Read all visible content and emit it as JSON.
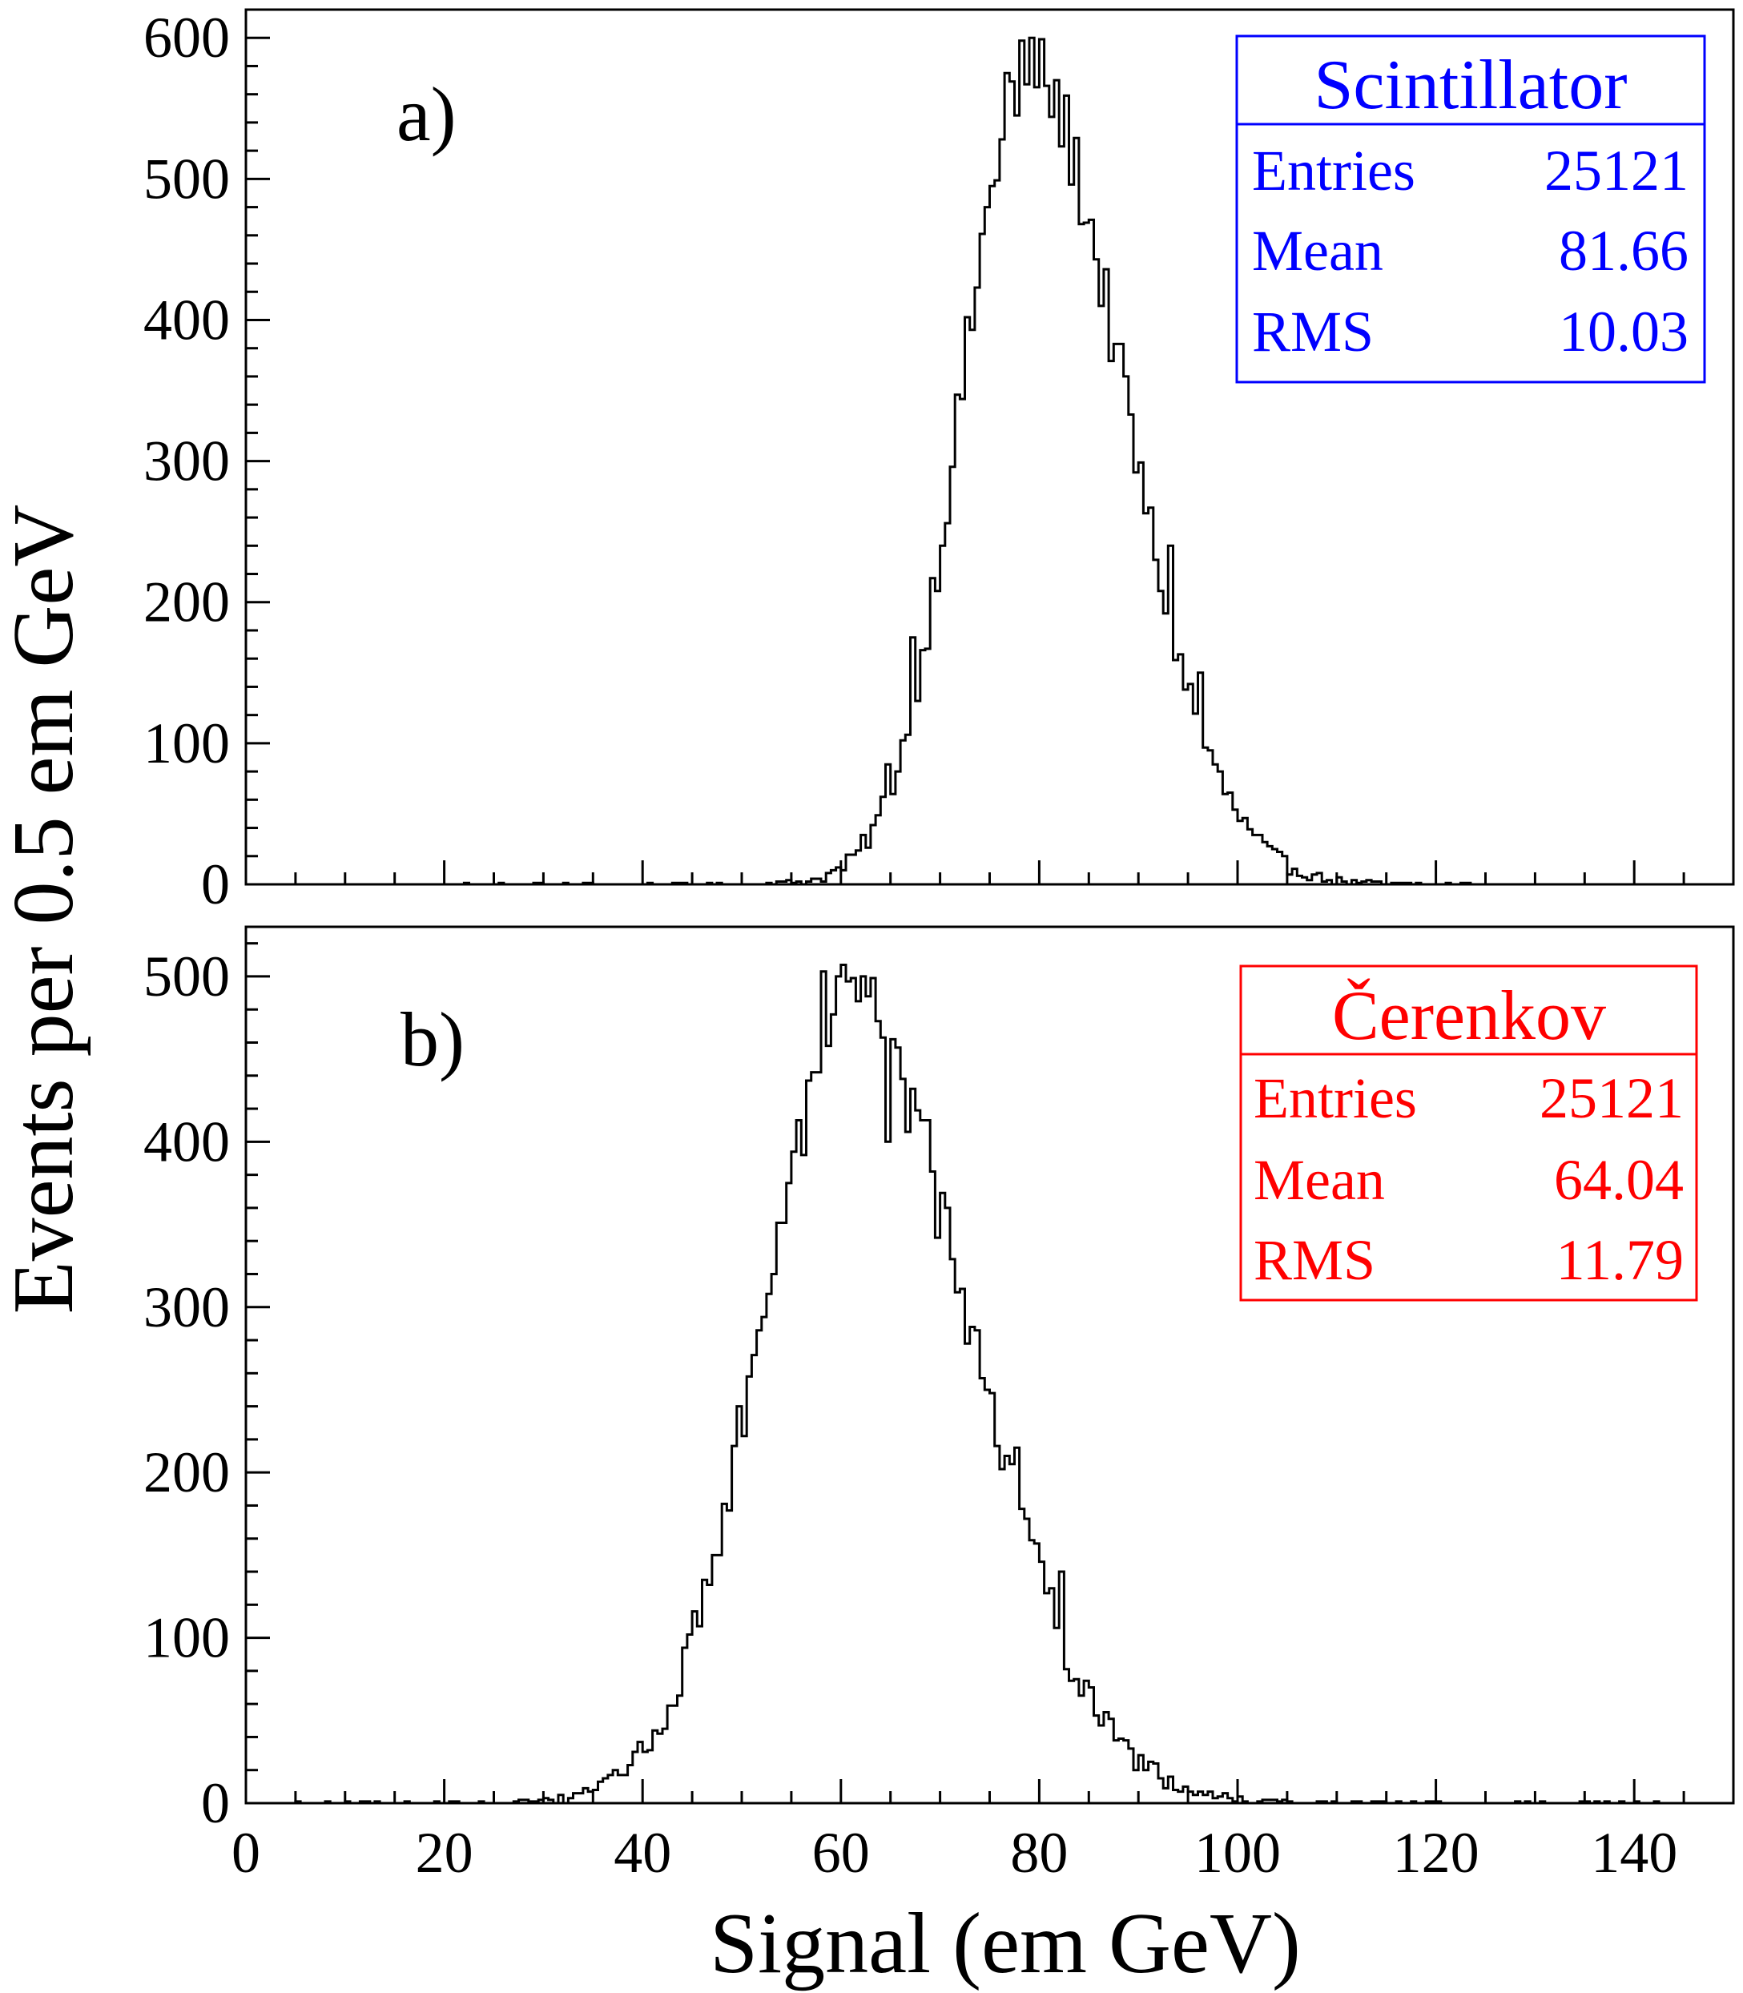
{
  "ylabel": "Events per 0.5 em GeV",
  "xlabel": "Signal (em GeV)",
  "x_ticks": [
    "0",
    "20",
    "40",
    "60",
    "80",
    "100",
    "120",
    "140"
  ],
  "chart_data": [
    {
      "type": "bar",
      "histogram": "step",
      "panel_label": "a)",
      "color": "#0000ff",
      "xlim": [
        0,
        150
      ],
      "ylim": [
        0,
        620
      ],
      "bin_width": 0.5,
      "y_ticks": [
        "0",
        "100",
        "200",
        "300",
        "400",
        "500",
        "600"
      ],
      "xlabel": "Signal (em GeV)",
      "ylabel": "Events per 0.5 em GeV",
      "stats": {
        "title": "Scintillator",
        "rows": [
          {
            "label": "Entries",
            "value": "25121"
          },
          {
            "label": "Mean",
            "value": "81.66"
          },
          {
            "label": "RMS",
            "value": "10.03"
          }
        ]
      },
      "distribution": {
        "shape": "gaussian",
        "peak_x": 79,
        "peak_y": 575,
        "sigma_left": 6.8,
        "sigma_right": 9.5,
        "x_min": 20,
        "x_max": 125,
        "bin_width": 0.5
      },
      "features": [
        {
          "x": 78.0,
          "y": 598
        },
        {
          "x": 79.5,
          "y": 565
        },
        {
          "x": 77.5,
          "y": 545
        },
        {
          "x": 76.5,
          "y": 575
        },
        {
          "x": 88.5,
          "y": 360
        },
        {
          "x": 93.0,
          "y": 240
        },
        {
          "x": 96.0,
          "y": 150
        },
        {
          "x": 64.5,
          "y": 85
        },
        {
          "x": 67.0,
          "y": 175
        }
      ]
    },
    {
      "type": "bar",
      "histogram": "step",
      "panel_label": "b)",
      "color": "#ff0000",
      "xlim": [
        0,
        150
      ],
      "ylim": [
        0,
        530
      ],
      "bin_width": 0.5,
      "y_ticks": [
        "0",
        "100",
        "200",
        "300",
        "400",
        "500"
      ],
      "xlabel": "Signal (em GeV)",
      "ylabel": "Events per 0.5 em GeV",
      "stats": {
        "title": "Čerenkov",
        "rows": [
          {
            "label": "Entries",
            "value": "25121"
          },
          {
            "label": "Mean",
            "value": "64.04"
          },
          {
            "label": "RMS",
            "value": "11.79"
          }
        ]
      },
      "distribution": {
        "shape": "gaussian",
        "peak_x": 61,
        "peak_y": 480,
        "sigma_left": 9.0,
        "sigma_right": 12.0,
        "x_min": 2,
        "x_max": 146,
        "bin_width": 0.5
      },
      "features": [
        {
          "x": 58.0,
          "y": 503
        },
        {
          "x": 59.5,
          "y": 500
        },
        {
          "x": 61.5,
          "y": 485
        },
        {
          "x": 64.5,
          "y": 400
        },
        {
          "x": 77.5,
          "y": 215
        },
        {
          "x": 82.0,
          "y": 140
        },
        {
          "x": 47.0,
          "y": 150
        }
      ]
    }
  ]
}
